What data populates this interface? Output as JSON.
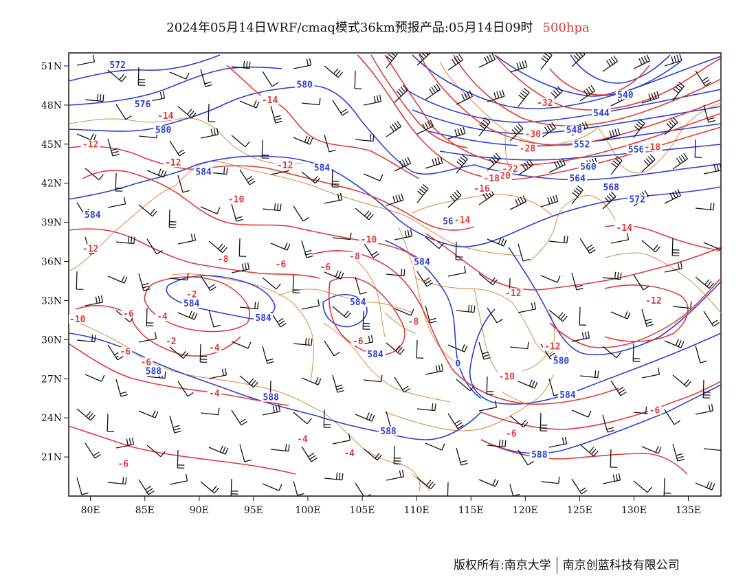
{
  "header": {
    "title": "2024年05月14日WRF/cmaq模式36km预报产品:05月14日09时",
    "level": "500hpa"
  },
  "footer": {
    "left": "版权所有:南京大学",
    "right": "南京创蓝科技有限公司"
  },
  "axes": {
    "lon": {
      "min": 78,
      "max": 138,
      "ticks": [
        80,
        85,
        90,
        95,
        100,
        105,
        110,
        115,
        120,
        125,
        130,
        135
      ],
      "labels": [
        "80E",
        "85E",
        "90E",
        "95E",
        "100E",
        "105E",
        "110E",
        "115E",
        "120E",
        "125E",
        "130E",
        "135E"
      ]
    },
    "lat": {
      "min": 18,
      "max": 52,
      "ticks": [
        21,
        24,
        27,
        30,
        33,
        36,
        39,
        42,
        45,
        48,
        51
      ],
      "labels": [
        "21N",
        "24N",
        "27N",
        "30N",
        "33N",
        "36N",
        "39N",
        "42N",
        "45N",
        "48N",
        "51N"
      ]
    }
  },
  "colors": {
    "temperature": "#e03a3a",
    "height": "#2a3fd6",
    "boundary": "#d98a3a",
    "wind": "#111111"
  },
  "height_labels": [
    {
      "text": "572",
      "lon": 82.5,
      "lat": 50.9
    },
    {
      "text": "580",
      "lon": 99.7,
      "lat": 49.4
    },
    {
      "text": "576",
      "lon": 84.8,
      "lat": 47.9
    },
    {
      "text": "580",
      "lon": 86.7,
      "lat": 45.9
    },
    {
      "text": "584",
      "lon": 90.4,
      "lat": 42.7
    },
    {
      "text": "584",
      "lon": 101.3,
      "lat": 43.0
    },
    {
      "text": "584",
      "lon": 80.2,
      "lat": 39.4
    },
    {
      "text": "584",
      "lon": 110.5,
      "lat": 35.8
    },
    {
      "text": "584",
      "lon": 89.3,
      "lat": 32.6
    },
    {
      "text": "584",
      "lon": 95.9,
      "lat": 31.5
    },
    {
      "text": "584",
      "lon": 104.6,
      "lat": 32.7
    },
    {
      "text": "584",
      "lon": 106.2,
      "lat": 28.7
    },
    {
      "text": "588",
      "lon": 85.8,
      "lat": 27.4
    },
    {
      "text": "588",
      "lon": 96.6,
      "lat": 25.4
    },
    {
      "text": "588",
      "lon": 107.4,
      "lat": 22.8
    },
    {
      "text": "588",
      "lon": 121.3,
      "lat": 21.0
    },
    {
      "text": "580",
      "lon": 123.3,
      "lat": 28.2
    },
    {
      "text": "584",
      "lon": 123.9,
      "lat": 25.6
    },
    {
      "text": "540",
      "lon": 129.2,
      "lat": 48.6
    },
    {
      "text": "544",
      "lon": 127.0,
      "lat": 47.2
    },
    {
      "text": "548",
      "lon": 124.5,
      "lat": 45.9
    },
    {
      "text": "552",
      "lon": 125.2,
      "lat": 44.8
    },
    {
      "text": "556",
      "lon": 130.2,
      "lat": 44.4
    },
    {
      "text": "560",
      "lon": 125.8,
      "lat": 43.1
    },
    {
      "text": "564",
      "lon": 124.8,
      "lat": 42.2
    },
    {
      "text": "568",
      "lon": 127.9,
      "lat": 41.5
    },
    {
      "text": "572",
      "lon": 130.3,
      "lat": 40.6
    },
    {
      "text": "56",
      "lon": 112.9,
      "lat": 38.9
    },
    {
      "text": "0",
      "lon": 113.8,
      "lat": 28.0
    }
  ],
  "temperature_labels": [
    {
      "text": "-14",
      "lon": 96.5,
      "lat": 48.2
    },
    {
      "text": "-14",
      "lon": 86.9,
      "lat": 47.0
    },
    {
      "text": "-12",
      "lon": 80.0,
      "lat": 44.8
    },
    {
      "text": "-12",
      "lon": 87.6,
      "lat": 43.4
    },
    {
      "text": "-12",
      "lon": 97.9,
      "lat": 43.2
    },
    {
      "text": "-10",
      "lon": 93.4,
      "lat": 40.6
    },
    {
      "text": "-12",
      "lon": 80.0,
      "lat": 36.8
    },
    {
      "text": "-8",
      "lon": 92.2,
      "lat": 36.0
    },
    {
      "text": "-6",
      "lon": 97.5,
      "lat": 35.6
    },
    {
      "text": "-6",
      "lon": 101.6,
      "lat": 35.4
    },
    {
      "text": "-8",
      "lon": 104.3,
      "lat": 36.2
    },
    {
      "text": "-10",
      "lon": 105.6,
      "lat": 37.5
    },
    {
      "text": "-14",
      "lon": 114.2,
      "lat": 39.0
    },
    {
      "text": "-32",
      "lon": 121.8,
      "lat": 48.0
    },
    {
      "text": "-30",
      "lon": 120.7,
      "lat": 45.6
    },
    {
      "text": "-28",
      "lon": 120.2,
      "lat": 44.5
    },
    {
      "text": "-22",
      "lon": 118.6,
      "lat": 42.9
    },
    {
      "text": "-20",
      "lon": 117.9,
      "lat": 42.4
    },
    {
      "text": "-18",
      "lon": 116.9,
      "lat": 42.2
    },
    {
      "text": "-16",
      "lon": 116.0,
      "lat": 41.4
    },
    {
      "text": "-18",
      "lon": 131.7,
      "lat": 44.6
    },
    {
      "text": "-14",
      "lon": 129.1,
      "lat": 38.4
    },
    {
      "text": "-12",
      "lon": 118.9,
      "lat": 33.4
    },
    {
      "text": "-12",
      "lon": 131.8,
      "lat": 32.8
    },
    {
      "text": "-12",
      "lon": 122.5,
      "lat": 29.3
    },
    {
      "text": "-10",
      "lon": 78.8,
      "lat": 31.4
    },
    {
      "text": "-6",
      "lon": 83.5,
      "lat": 31.8
    },
    {
      "text": "-4",
      "lon": 86.6,
      "lat": 31.6
    },
    {
      "text": "-2",
      "lon": 89.3,
      "lat": 33.3
    },
    {
      "text": "-2",
      "lon": 87.4,
      "lat": 29.7
    },
    {
      "text": "-4",
      "lon": 91.4,
      "lat": 29.2
    },
    {
      "text": "-6",
      "lon": 83.2,
      "lat": 28.9
    },
    {
      "text": "-6",
      "lon": 85.1,
      "lat": 28.1
    },
    {
      "text": "-8",
      "lon": 109.7,
      "lat": 31.2
    },
    {
      "text": "-6",
      "lon": 104.6,
      "lat": 29.7
    },
    {
      "text": "-10",
      "lon": 118.3,
      "lat": 27.0
    },
    {
      "text": "-4",
      "lon": 91.4,
      "lat": 25.7
    },
    {
      "text": "-4",
      "lon": 99.5,
      "lat": 22.2
    },
    {
      "text": "-4",
      "lon": 103.8,
      "lat": 21.1
    },
    {
      "text": "-6",
      "lon": 83.0,
      "lat": 20.3
    },
    {
      "text": "-6",
      "lon": 131.9,
      "lat": 24.4
    },
    {
      "text": "-6",
      "lon": 118.7,
      "lat": 22.6
    }
  ]
}
